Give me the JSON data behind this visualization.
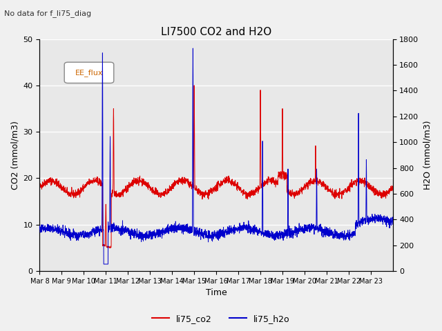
{
  "title": "LI7500 CO2 and H2O",
  "subtitle": "No data for f_li75_diag",
  "xlabel": "Time",
  "ylabel_left": "CO2 (mmol/m3)",
  "ylabel_right": "H2O (mmol/m3)",
  "ylim_left": [
    0,
    50
  ],
  "ylim_right": [
    0,
    1800
  ],
  "legend_box_label": "EE_flux",
  "legend_entries": [
    "li75_co2",
    "li75_h2o"
  ],
  "legend_colors": [
    "#dd0000",
    "#0000cc"
  ],
  "co2_base": 18.0,
  "background_color": "#e8e8e8",
  "grid_color": "#ffffff",
  "xtick_labels": [
    "Mar 8",
    "Mar 9",
    "Mar 10",
    "Mar 11",
    "Mar 12",
    "Mar 13",
    "Mar 14",
    "Mar 15",
    "Mar 16",
    "Mar 17",
    "Mar 18",
    "Mar 19",
    "Mar 20",
    "Mar 21",
    "Mar 22",
    "Mar 23"
  ],
  "num_days": 16,
  "co2_color": "#dd0000",
  "h2o_color": "#0000cc"
}
